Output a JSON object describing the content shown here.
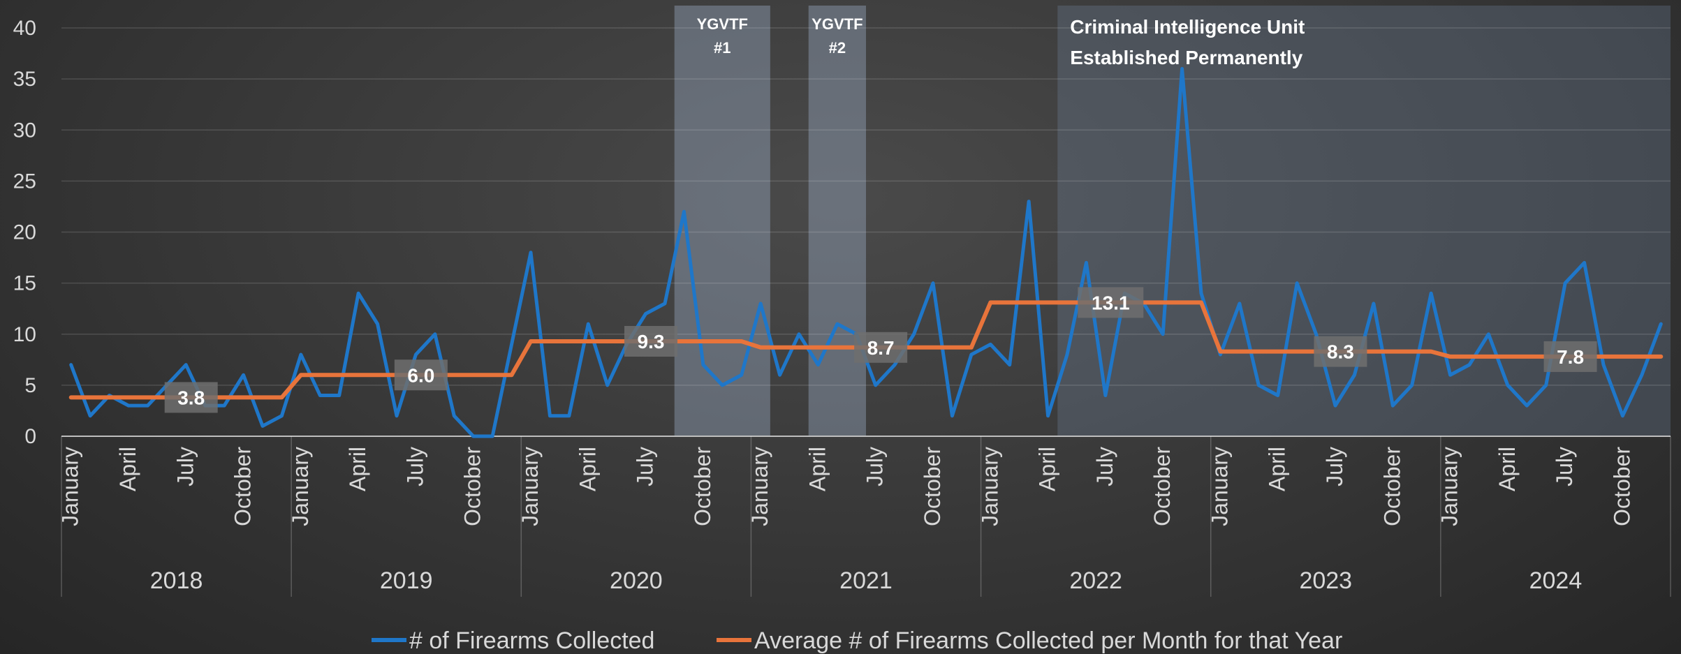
{
  "chart_data": {
    "type": "line",
    "title": "",
    "xlabel": "",
    "ylabel": "",
    "ylim": [
      0,
      40
    ],
    "yticks": [
      0,
      5,
      10,
      15,
      20,
      25,
      30,
      35,
      40
    ],
    "grid": "horizontal",
    "legend_position": "bottom",
    "years": [
      "2018",
      "2019",
      "2020",
      "2021",
      "2022",
      "2023",
      "2024"
    ],
    "month_tick_labels": [
      "January",
      "April",
      "July",
      "October"
    ],
    "colors": {
      "series1": "#1f77c9",
      "series2": "#e8743b"
    },
    "series": [
      {
        "name": "# of Firearms Collected",
        "values": [
          7,
          2,
          4,
          3,
          3,
          5,
          7,
          3,
          3,
          6,
          1,
          2,
          8,
          4,
          4,
          14,
          11,
          2,
          8,
          10,
          2,
          0,
          0,
          9,
          18,
          2,
          2,
          11,
          5,
          9,
          12,
          13,
          22,
          7,
          5,
          6,
          13,
          6,
          10,
          7,
          11,
          10,
          5,
          7,
          10,
          15,
          2,
          8,
          9,
          7,
          23,
          2,
          8,
          17,
          4,
          14,
          13,
          10,
          36,
          14,
          8,
          13,
          5,
          4,
          15,
          10,
          3,
          6,
          13,
          3,
          5,
          14,
          6,
          7,
          10,
          5,
          3,
          5,
          15,
          17,
          7,
          2,
          6,
          11
        ]
      },
      {
        "name": "Average # of Firearms Collected per Month for that Year",
        "yearly_values": [
          3.8,
          6.0,
          9.3,
          8.7,
          13.1,
          8.3,
          7.8
        ]
      }
    ],
    "data_labels": [
      "3.8",
      "6.0",
      "9.3",
      "8.7",
      "13.1",
      "8.3",
      "7.8"
    ],
    "annotations": [
      {
        "lines": [
          "YGVTF",
          "#1"
        ],
        "start_month": 32,
        "end_month": 37
      },
      {
        "lines": [
          "YGVTF",
          "#2"
        ],
        "start_month": 39,
        "end_month": 42
      },
      {
        "lines": [
          "Criminal Intelligence Unit",
          "Established Permanently"
        ],
        "start_month": 52,
        "end_month": 84
      }
    ]
  }
}
